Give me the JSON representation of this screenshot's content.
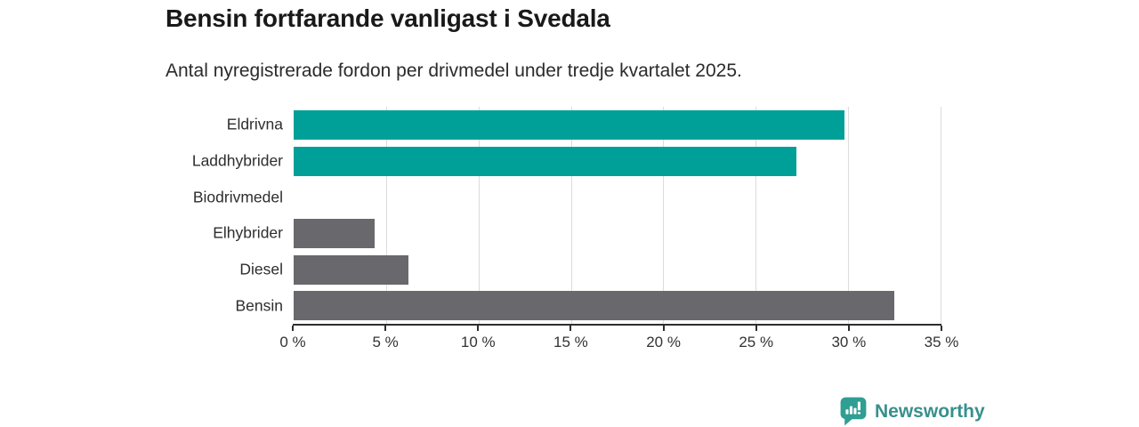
{
  "header": {
    "title": "Bensin fortfarande vanligast i Svedala",
    "subtitle": "Antal nyregistrerade fordon per drivmedel under tredje kvartalet 2025."
  },
  "chart_data": {
    "type": "bar",
    "orientation": "horizontal",
    "title": "Bensin fortfarande vanligast i Svedala",
    "subtitle": "Antal nyregistrerade fordon per drivmedel under tredje kvartalet 2025.",
    "categories": [
      "Eldrivna",
      "Laddhybrider",
      "Biodrivmedel",
      "Elhybrider",
      "Diesel",
      "Bensin"
    ],
    "values": [
      29.8,
      27.2,
      0,
      4.4,
      6.2,
      32.5
    ],
    "unit": "%",
    "xlim": [
      0,
      35
    ],
    "x_ticks": [
      0,
      5,
      10,
      15,
      20,
      25,
      30,
      35
    ],
    "x_tick_labels": [
      "0 %",
      "5 %",
      "10 %",
      "15 %",
      "20 %",
      "25 %",
      "30 %",
      "35 %"
    ],
    "grid": "vertical-gridlines-on",
    "legend": "none",
    "bar_colors": [
      "#00a099",
      "#00a099",
      "#00a099",
      "#68686d",
      "#68686d",
      "#68686d"
    ],
    "colors": {
      "teal": "#00a099",
      "gray": "#68686d",
      "gridline": "#dcdcdc",
      "axis": "#2e2e2e"
    }
  },
  "branding": {
    "name": "Newsworthy",
    "icon": "newsworthy-logo-icon",
    "icon_color": "#2f9e93",
    "text_color": "#38908c"
  }
}
